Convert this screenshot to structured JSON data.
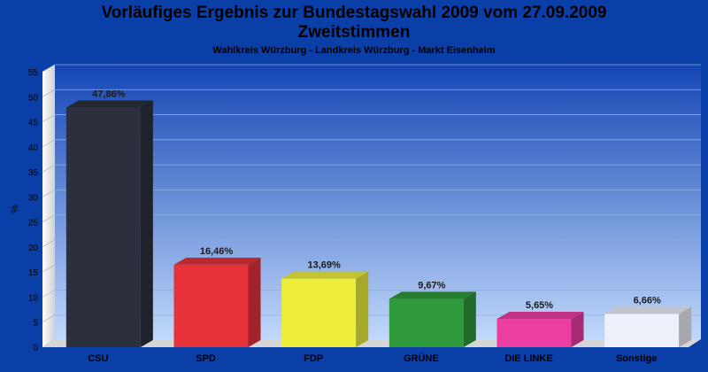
{
  "chart_data": {
    "type": "bar",
    "title_lines": [
      "Vorläufiges Ergebnis zur Bundestagswahl 2009 vom 27.09.2009",
      "Zweitstimmen"
    ],
    "subtitle": "Wahlkreis Würzburg - Landkreis Würzburg - Markt Eisenheim",
    "ylabel": "%",
    "xlabel": "",
    "categories": [
      "CSU",
      "SPD",
      "FDP",
      "GRÜNE",
      "DIE LINKE",
      "Sonstige"
    ],
    "values": [
      47.86,
      16.46,
      13.69,
      9.67,
      5.65,
      6.66
    ],
    "value_labels": [
      "47,86%",
      "16,46%",
      "13,69%",
      "9,67%",
      "5,65%",
      "6,66%"
    ],
    "colors": [
      "#2b303c",
      "#e8323a",
      "#eeee3a",
      "#2f9a3c",
      "#ea3ea2",
      "#eef0fa"
    ],
    "ylim": [
      0,
      55
    ],
    "yticks": [
      0,
      5,
      10,
      15,
      20,
      25,
      30,
      35,
      40,
      45,
      50,
      55
    ],
    "grid": true,
    "legend": "none"
  }
}
